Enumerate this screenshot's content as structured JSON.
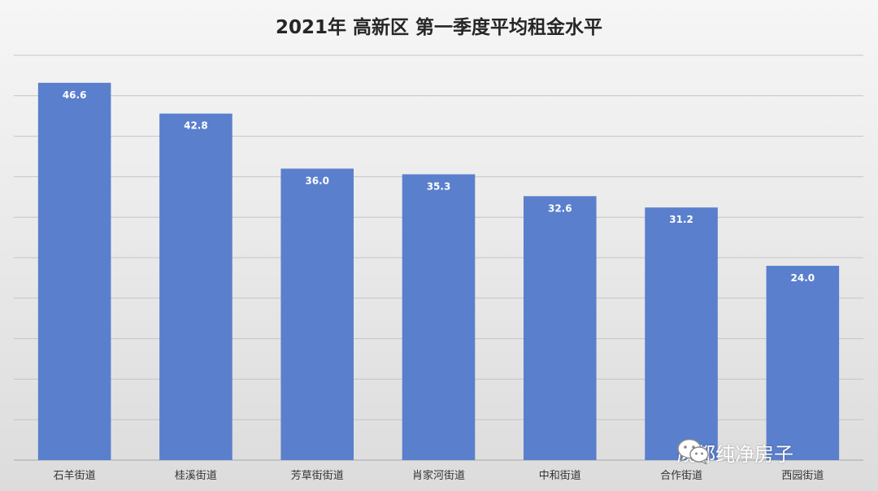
{
  "chart_data": {
    "type": "bar",
    "title": "2021年 高新区 第一季度平均租金水平",
    "categories": [
      "石羊街道",
      "桂溪街道",
      "芳草街街道",
      "肖家河街道",
      "中和街道",
      "合作街道",
      "西园街道"
    ],
    "values": [
      46.6,
      42.8,
      36.0,
      35.3,
      32.6,
      31.2,
      24.0
    ],
    "value_labels": [
      "46.6",
      "42.8",
      "36.0",
      "35.3",
      "32.6",
      "31.2",
      "24.0"
    ],
    "ylim": [
      0,
      50
    ],
    "y_gridline_step": 5,
    "grid": true,
    "legend": "none",
    "bar_color": "#5a7fcc"
  },
  "watermark": {
    "icon": "wechat-icon",
    "text": "成都纯净房子"
  }
}
